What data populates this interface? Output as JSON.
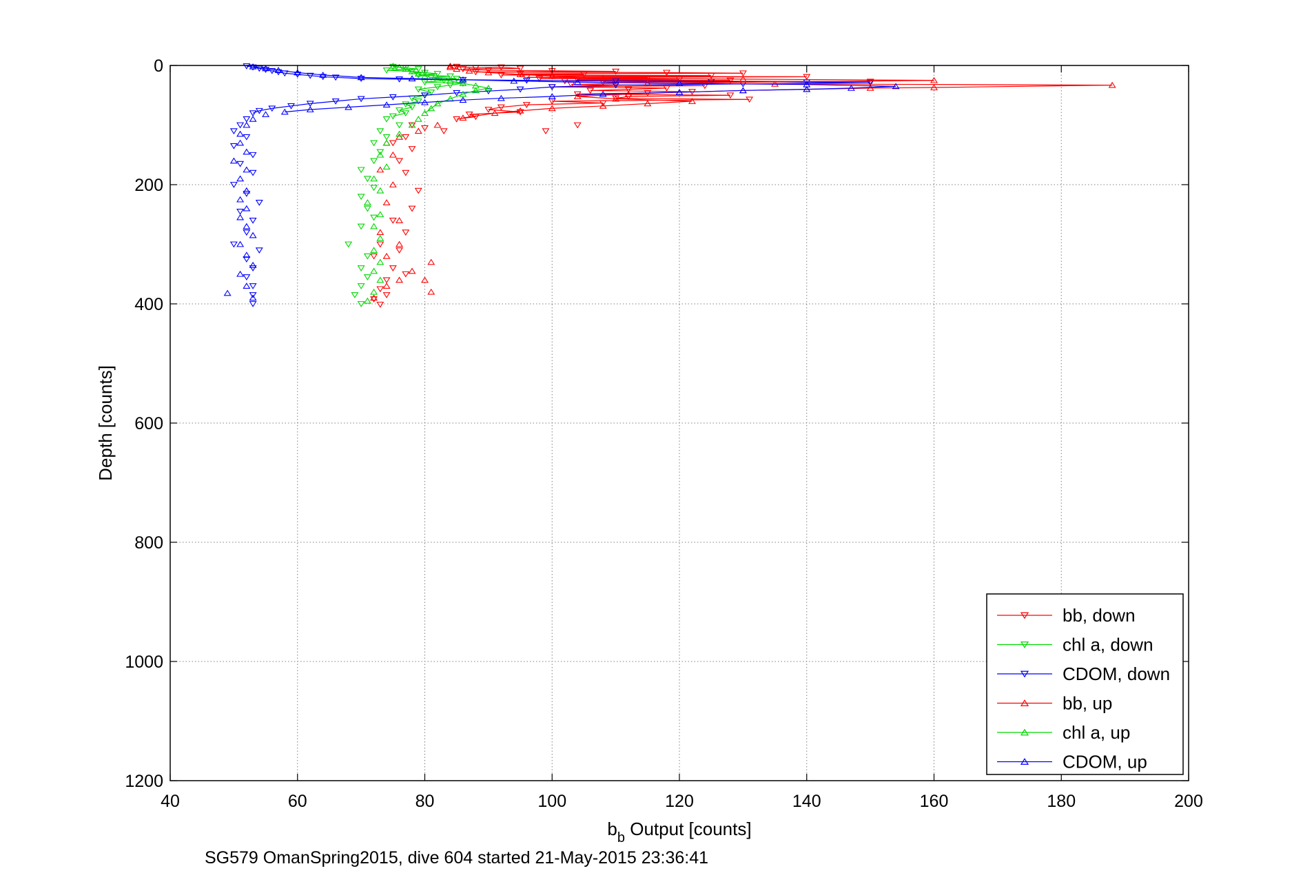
{
  "colors": {
    "bb": "#ff0000",
    "chl": "#00d800",
    "cdom": "#0000ff",
    "grid": "#7f7f7f",
    "axes": "#000000"
  },
  "labels": {
    "xlabel_main": "b",
    "xlabel_sub": "b",
    "xlabel_rest": " Output [counts]",
    "ylabel": "Depth [counts]",
    "caption": "SG579 OmanSpring2015, dive 604 started 21-May-2015 23:36:41"
  },
  "chart_data": {
    "type": "line",
    "xlabel": "b_b Output [counts]",
    "ylabel": "Depth [counts]",
    "xlim": [
      40,
      200
    ],
    "ylim": [
      0,
      1200
    ],
    "y_reversed": true,
    "xticks": [
      40,
      60,
      80,
      100,
      120,
      140,
      160,
      180,
      200
    ],
    "yticks": [
      0,
      200,
      400,
      600,
      800,
      1000,
      1200
    ],
    "grid": true,
    "grid_style": "dotted",
    "legend_position": "bottom-right",
    "caption": "SG579 OmanSpring2015, dive 604 started 21-May-2015 23:36:41",
    "series": [
      {
        "name": "bb, down",
        "color": "#ff0000",
        "marker": "triangle-down",
        "lines_depth_max": 90,
        "points": [
          [
            85,
            2
          ],
          [
            88,
            4
          ],
          [
            92,
            3
          ],
          [
            95,
            5
          ],
          [
            86,
            6
          ],
          [
            90,
            8
          ],
          [
            100,
            9
          ],
          [
            110,
            10
          ],
          [
            88,
            11
          ],
          [
            118,
            12
          ],
          [
            130,
            13
          ],
          [
            95,
            14
          ],
          [
            105,
            15
          ],
          [
            92,
            16
          ],
          [
            125,
            17
          ],
          [
            100,
            18
          ],
          [
            140,
            19
          ],
          [
            96,
            20
          ],
          [
            115,
            21
          ],
          [
            98,
            22
          ],
          [
            120,
            23
          ],
          [
            104,
            24
          ],
          [
            128,
            25
          ],
          [
            102,
            26
          ],
          [
            150,
            27
          ],
          [
            108,
            28
          ],
          [
            110,
            30
          ],
          [
            103,
            32
          ],
          [
            124,
            34
          ],
          [
            100,
            36
          ],
          [
            118,
            38
          ],
          [
            112,
            40
          ],
          [
            106,
            42
          ],
          [
            122,
            44
          ],
          [
            115,
            46
          ],
          [
            104,
            48
          ],
          [
            128,
            50
          ],
          [
            112,
            52
          ],
          [
            110,
            55
          ],
          [
            131,
            57
          ],
          [
            100,
            60
          ],
          [
            108,
            63
          ],
          [
            96,
            66
          ],
          [
            92,
            70
          ],
          [
            90,
            74
          ],
          [
            95,
            78
          ],
          [
            87,
            82
          ],
          [
            88,
            86
          ],
          [
            85,
            90
          ],
          [
            104,
            100
          ],
          [
            99,
            110
          ],
          [
            83,
            110
          ],
          [
            80,
            105
          ],
          [
            78,
            100
          ],
          [
            77,
            120
          ],
          [
            75,
            130
          ],
          [
            78,
            140
          ],
          [
            76,
            160
          ],
          [
            77,
            180
          ],
          [
            79,
            210
          ],
          [
            78,
            240
          ],
          [
            75,
            260
          ],
          [
            77,
            280
          ],
          [
            73,
            300
          ],
          [
            76,
            310
          ],
          [
            72,
            320
          ],
          [
            75,
            340
          ],
          [
            77,
            350
          ],
          [
            74,
            360
          ],
          [
            73,
            375
          ],
          [
            74,
            385
          ],
          [
            72,
            392
          ],
          [
            73,
            401
          ]
        ]
      },
      {
        "name": "chl a, down",
        "color": "#00d800",
        "marker": "triangle-down",
        "lines_depth_max": 85,
        "points": [
          [
            75,
            2
          ],
          [
            77,
            4
          ],
          [
            79,
            6
          ],
          [
            74,
            8
          ],
          [
            78,
            10
          ],
          [
            80,
            12
          ],
          [
            82,
            14
          ],
          [
            79,
            16
          ],
          [
            84,
            18
          ],
          [
            81,
            20
          ],
          [
            85,
            22
          ],
          [
            83,
            25
          ],
          [
            80,
            28
          ],
          [
            86,
            30
          ],
          [
            84,
            33
          ],
          [
            82,
            36
          ],
          [
            79,
            40
          ],
          [
            81,
            45
          ],
          [
            80,
            50
          ],
          [
            78,
            55
          ],
          [
            79,
            60
          ],
          [
            77,
            65
          ],
          [
            78,
            70
          ],
          [
            76,
            75
          ],
          [
            77,
            80
          ],
          [
            75,
            85
          ],
          [
            74,
            90
          ],
          [
            76,
            100
          ],
          [
            73,
            110
          ],
          [
            74,
            120
          ],
          [
            72,
            130
          ],
          [
            73,
            145
          ],
          [
            72,
            160
          ],
          [
            70,
            175
          ],
          [
            71,
            190
          ],
          [
            72,
            205
          ],
          [
            70,
            220
          ],
          [
            71,
            240
          ],
          [
            72,
            255
          ],
          [
            70,
            270
          ],
          [
            68,
            300
          ],
          [
            71,
            320
          ],
          [
            70,
            340
          ],
          [
            71,
            355
          ],
          [
            70,
            370
          ],
          [
            69,
            385
          ],
          [
            70,
            400
          ]
        ]
      },
      {
        "name": "CDOM, down",
        "color": "#0000ff",
        "marker": "triangle-down",
        "lines_depth_max": 80,
        "points": [
          [
            52,
            1
          ],
          [
            53,
            3
          ],
          [
            54,
            5
          ],
          [
            55,
            7
          ],
          [
            56,
            9
          ],
          [
            57,
            11
          ],
          [
            58,
            13
          ],
          [
            60,
            15
          ],
          [
            62,
            17
          ],
          [
            64,
            19
          ],
          [
            66,
            20
          ],
          [
            70,
            22
          ],
          [
            76,
            23
          ],
          [
            86,
            24
          ],
          [
            96,
            25
          ],
          [
            110,
            26
          ],
          [
            125,
            27
          ],
          [
            140,
            28
          ],
          [
            150,
            29
          ],
          [
            130,
            31
          ],
          [
            110,
            33
          ],
          [
            100,
            36
          ],
          [
            95,
            40
          ],
          [
            90,
            43
          ],
          [
            85,
            46
          ],
          [
            80,
            50
          ],
          [
            75,
            53
          ],
          [
            70,
            56
          ],
          [
            66,
            60
          ],
          [
            62,
            64
          ],
          [
            59,
            68
          ],
          [
            56,
            72
          ],
          [
            54,
            76
          ],
          [
            53,
            80
          ],
          [
            52,
            90
          ],
          [
            51,
            100
          ],
          [
            50,
            110
          ],
          [
            52,
            120
          ],
          [
            50,
            135
          ],
          [
            53,
            150
          ],
          [
            51,
            165
          ],
          [
            53,
            180
          ],
          [
            50,
            200
          ],
          [
            52,
            215
          ],
          [
            54,
            230
          ],
          [
            51,
            245
          ],
          [
            53,
            260
          ],
          [
            52,
            280
          ],
          [
            50,
            300
          ],
          [
            54,
            310
          ],
          [
            52,
            325
          ],
          [
            53,
            340
          ],
          [
            52,
            355
          ],
          [
            53,
            370
          ],
          [
            53,
            385
          ],
          [
            53,
            400
          ]
        ]
      },
      {
        "name": "bb, up",
        "color": "#ff0000",
        "marker": "triangle-up",
        "lines_depth_max": 90,
        "points": [
          [
            81,
            380
          ],
          [
            80,
            360
          ],
          [
            81,
            330
          ],
          [
            78,
            345
          ],
          [
            76,
            360
          ],
          [
            74,
            370
          ],
          [
            72,
            390
          ],
          [
            74,
            320
          ],
          [
            76,
            300
          ],
          [
            73,
            280
          ],
          [
            76,
            260
          ],
          [
            74,
            230
          ],
          [
            75,
            200
          ],
          [
            73,
            175
          ],
          [
            75,
            150
          ],
          [
            74,
            130
          ],
          [
            76,
            120
          ],
          [
            79,
            110
          ],
          [
            82,
            100
          ],
          [
            86,
            88
          ],
          [
            91,
            80
          ],
          [
            95,
            76
          ],
          [
            100,
            72
          ],
          [
            108,
            68
          ],
          [
            115,
            64
          ],
          [
            122,
            60
          ],
          [
            110,
            56
          ],
          [
            104,
            52
          ],
          [
            112,
            48
          ],
          [
            120,
            45
          ],
          [
            130,
            42
          ],
          [
            140,
            40
          ],
          [
            150,
            38
          ],
          [
            160,
            37
          ],
          [
            188,
            33
          ],
          [
            135,
            31
          ],
          [
            115,
            30
          ],
          [
            160,
            25
          ],
          [
            130,
            23
          ],
          [
            108,
            21
          ],
          [
            100,
            18
          ],
          [
            95,
            15
          ],
          [
            90,
            12
          ],
          [
            87,
            9
          ],
          [
            85,
            6
          ],
          [
            84,
            3
          ],
          [
            84,
            1
          ]
        ]
      },
      {
        "name": "chl a, up",
        "color": "#00d800",
        "marker": "triangle-up",
        "lines_depth_max": 85,
        "points": [
          [
            71,
            395
          ],
          [
            72,
            380
          ],
          [
            73,
            360
          ],
          [
            72,
            345
          ],
          [
            73,
            330
          ],
          [
            72,
            310
          ],
          [
            73,
            290
          ],
          [
            72,
            270
          ],
          [
            73,
            250
          ],
          [
            71,
            230
          ],
          [
            73,
            210
          ],
          [
            72,
            190
          ],
          [
            74,
            170
          ],
          [
            73,
            150
          ],
          [
            74,
            130
          ],
          [
            76,
            115
          ],
          [
            78,
            100
          ],
          [
            79,
            90
          ],
          [
            80,
            80
          ],
          [
            81,
            72
          ],
          [
            82,
            64
          ],
          [
            84,
            56
          ],
          [
            86,
            48
          ],
          [
            88,
            42
          ],
          [
            90,
            38
          ],
          [
            88,
            34
          ],
          [
            86,
            30
          ],
          [
            84,
            26
          ],
          [
            82,
            22
          ],
          [
            80,
            18
          ],
          [
            79,
            14
          ],
          [
            78,
            10
          ],
          [
            77,
            6
          ],
          [
            76,
            3
          ],
          [
            75,
            1
          ]
        ]
      },
      {
        "name": "CDOM, up",
        "color": "#0000ff",
        "marker": "triangle-up",
        "lines_depth_max": 80,
        "points": [
          [
            49,
            382
          ],
          [
            53,
            390
          ],
          [
            52,
            370
          ],
          [
            51,
            350
          ],
          [
            53,
            335
          ],
          [
            52,
            318
          ],
          [
            51,
            300
          ],
          [
            53,
            285
          ],
          [
            52,
            270
          ],
          [
            51,
            255
          ],
          [
            52,
            240
          ],
          [
            51,
            225
          ],
          [
            52,
            210
          ],
          [
            51,
            190
          ],
          [
            52,
            175
          ],
          [
            50,
            160
          ],
          [
            52,
            145
          ],
          [
            51,
            130
          ],
          [
            51,
            115
          ],
          [
            52,
            100
          ],
          [
            53,
            90
          ],
          [
            55,
            82
          ],
          [
            58,
            78
          ],
          [
            62,
            74
          ],
          [
            68,
            70
          ],
          [
            74,
            66
          ],
          [
            80,
            62
          ],
          [
            86,
            58
          ],
          [
            92,
            55
          ],
          [
            100,
            52
          ],
          [
            108,
            48
          ],
          [
            120,
            45
          ],
          [
            130,
            42
          ],
          [
            140,
            40
          ],
          [
            147,
            38
          ],
          [
            154,
            35
          ],
          [
            140,
            32
          ],
          [
            120,
            30
          ],
          [
            104,
            28
          ],
          [
            94,
            26
          ],
          [
            86,
            24
          ],
          [
            78,
            22
          ],
          [
            70,
            20
          ],
          [
            64,
            16
          ],
          [
            60,
            12
          ],
          [
            57,
            8
          ],
          [
            55,
            5
          ],
          [
            53,
            2
          ]
        ]
      }
    ]
  }
}
